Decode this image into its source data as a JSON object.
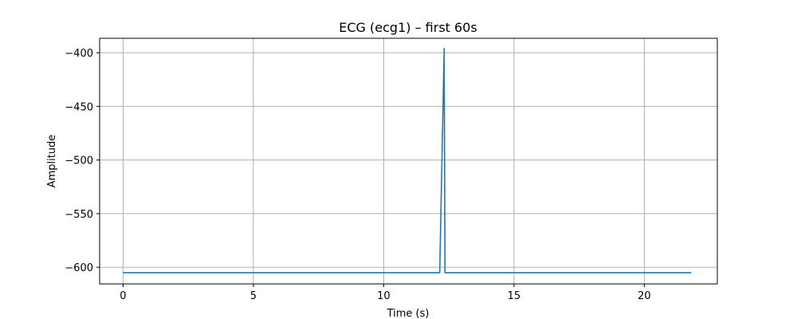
{
  "chart_data": {
    "type": "line",
    "title": "ECG (ecg1) – first 60s",
    "xlabel": "Time (s)",
    "ylabel": "Amplitude",
    "xlim": [
      -0.9,
      22.8
    ],
    "ylim": [
      -615.5,
      -386.5
    ],
    "xticks": [
      0,
      5,
      10,
      15,
      20
    ],
    "yticks": [
      -600,
      -550,
      -500,
      -450,
      -400
    ],
    "grid": true,
    "legend": "none",
    "colors": {
      "line": "#1f77b4",
      "grid": "#b0b0b0",
      "axes": "#000000"
    },
    "series": [
      {
        "x": [
          0,
          12.15,
          12.32,
          12.35,
          21.8
        ],
        "y": [
          -605,
          -605,
          -396,
          -605,
          -605
        ]
      }
    ]
  }
}
